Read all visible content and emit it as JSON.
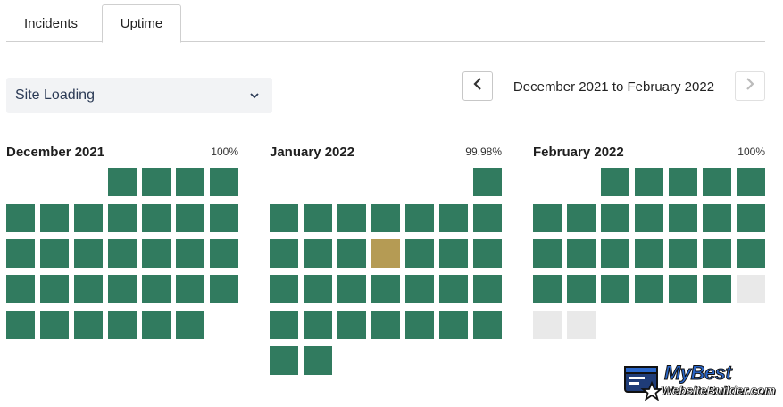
{
  "tabs": [
    {
      "label": "Incidents",
      "active": false
    },
    {
      "label": "Uptime",
      "active": true
    }
  ],
  "dropdown": {
    "value": "Site Loading",
    "icon": "chevron-down-icon"
  },
  "date_nav": {
    "range_label": "December 2021 to February 2022",
    "prev_icon": "chevron-left-icon",
    "next_icon": "chevron-right-icon",
    "next_disabled": true
  },
  "colors": {
    "up": "#317b5f",
    "partial": "#b59b54",
    "no_data": "#e9e9e9"
  },
  "months": [
    {
      "name": "December 2021",
      "uptime": "100%",
      "offset": 3,
      "days": [
        "up",
        "up",
        "up",
        "up",
        "up",
        "up",
        "up",
        "up",
        "up",
        "up",
        "up",
        "up",
        "up",
        "up",
        "up",
        "up",
        "up",
        "up",
        "up",
        "up",
        "up",
        "up",
        "up",
        "up",
        "up",
        "up",
        "up",
        "up",
        "up",
        "up",
        "up"
      ]
    },
    {
      "name": "January 2022",
      "uptime": "99.98%",
      "offset": 6,
      "days": [
        "up",
        "up",
        "up",
        "up",
        "up",
        "up",
        "up",
        "up",
        "up",
        "up",
        "up",
        "partial",
        "up",
        "up",
        "up",
        "up",
        "up",
        "up",
        "up",
        "up",
        "up",
        "up",
        "up",
        "up",
        "up",
        "up",
        "up",
        "up",
        "up",
        "up",
        "up"
      ]
    },
    {
      "name": "February 2022",
      "uptime": "100%",
      "offset": 2,
      "days": [
        "up",
        "up",
        "up",
        "up",
        "up",
        "up",
        "up",
        "up",
        "up",
        "up",
        "up",
        "up",
        "up",
        "up",
        "up",
        "up",
        "up",
        "up",
        "up",
        "up",
        "up",
        "up",
        "up",
        "up",
        "up",
        "none",
        "none",
        "none"
      ]
    }
  ],
  "watermark": {
    "line1": "MyBest",
    "line2": "WebsiteBuilder.com"
  }
}
